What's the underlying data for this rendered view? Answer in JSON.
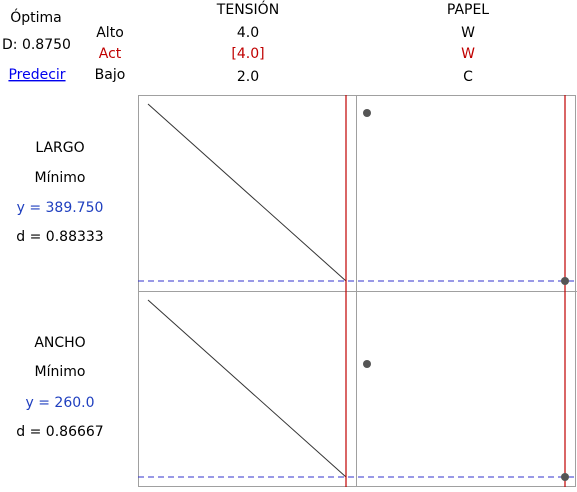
{
  "header": {
    "title": "Óptima",
    "desirability": "D: 0.8750",
    "link": "Predecir",
    "level_labels": [
      "Alto",
      "Act",
      "Bajo"
    ]
  },
  "factors": [
    {
      "name": "TENSIÓN",
      "high": "4.0",
      "current": "[4.0]",
      "low": "2.0"
    },
    {
      "name": "PAPEL",
      "high": "W",
      "current": "W",
      "low": "C"
    }
  ],
  "responses": [
    {
      "name": "LARGO",
      "goal": "Mínimo",
      "prediction": "y = 389.750",
      "desirability": "d = 0.88333"
    },
    {
      "name": "ANCHO",
      "goal": "Mínimo",
      "prediction": "y = 260.0",
      "desirability": "d = 0.86667"
    }
  ]
}
